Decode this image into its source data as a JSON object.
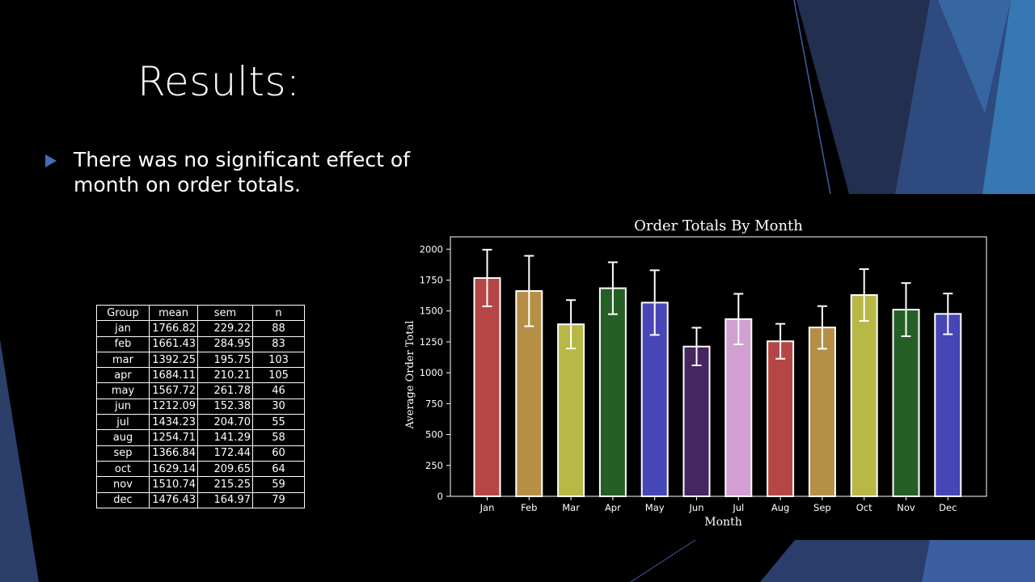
{
  "slide": {
    "title": "Results:",
    "bullet": "There was no significant effect of month on order totals."
  },
  "table": {
    "headers": [
      "Group",
      "mean",
      "sem",
      "n"
    ],
    "rows": [
      [
        "jan",
        "1766.82",
        "229.22",
        "88"
      ],
      [
        "feb",
        "1661.43",
        "284.95",
        "83"
      ],
      [
        "mar",
        "1392.25",
        "195.75",
        "103"
      ],
      [
        "apr",
        "1684.11",
        "210.21",
        "105"
      ],
      [
        "may",
        "1567.72",
        "261.78",
        "46"
      ],
      [
        "jun",
        "1212.09",
        "152.38",
        "30"
      ],
      [
        "jul",
        "1434.23",
        "204.70",
        "55"
      ],
      [
        "aug",
        "1254.71",
        "141.29",
        "58"
      ],
      [
        "sep",
        "1366.84",
        "172.44",
        "60"
      ],
      [
        "oct",
        "1629.14",
        "209.65",
        "64"
      ],
      [
        "nov",
        "1510.74",
        "215.25",
        "59"
      ],
      [
        "dec",
        "1476.43",
        "164.97",
        "79"
      ]
    ]
  },
  "chart_data": {
    "type": "bar",
    "title": "Order Totals By Month",
    "xlabel": "Month",
    "ylabel": "Average Order Total",
    "categories": [
      "Jan",
      "Feb",
      "Mar",
      "Apr",
      "May",
      "Jun",
      "Jul",
      "Aug",
      "Sep",
      "Oct",
      "Nov",
      "Dec"
    ],
    "values": [
      1766.82,
      1661.43,
      1392.25,
      1684.11,
      1567.72,
      1212.09,
      1434.23,
      1254.71,
      1366.84,
      1629.14,
      1510.74,
      1476.43
    ],
    "errors": [
      229.22,
      284.95,
      195.75,
      210.21,
      261.78,
      152.38,
      204.7,
      141.29,
      172.44,
      209.65,
      215.25,
      164.97
    ],
    "colors": [
      "#b64646",
      "#b58f46",
      "#b8b846",
      "#255f25",
      "#4646b6",
      "#462560",
      "#d19fd1",
      "#b64646",
      "#b58f46",
      "#b8b846",
      "#255f25",
      "#4646b6"
    ],
    "ylim": [
      0,
      2100
    ],
    "yticks": [
      0,
      250,
      500,
      750,
      1000,
      1250,
      1500,
      1750,
      2000
    ],
    "grid": false,
    "error_bar_color": "#ffffff"
  }
}
